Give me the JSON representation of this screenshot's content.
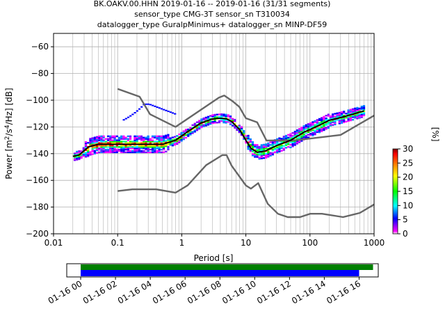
{
  "title": {
    "line1": "BK.OAKV.00.HHN   2019-01-16 -- 2019-01-16  (31/31 segments)",
    "line2": "sensor_type CMG-3T sensor_sn T310034",
    "line3": "datalogger_type GuralpMinimus+ datalogger_sn MINP-DF59"
  },
  "colorbar": {
    "label": "[%]",
    "ticks": [
      "0",
      "5",
      "10",
      "15",
      "20",
      "25",
      "30"
    ],
    "range": [
      0,
      30
    ]
  },
  "timeline": {
    "ticks": [
      "01-16 00",
      "01-16 02",
      "01-16 04",
      "01-16 06",
      "01-16 08",
      "01-16 10",
      "01-16 12",
      "01-16 14",
      "01-16 16"
    ],
    "range_hours": [
      -0.8,
      17.1
    ],
    "bars": [
      {
        "name": "data",
        "start": 0,
        "end": 16.8,
        "color": "#008000"
      },
      {
        "name": "used",
        "start": 0,
        "end": 16.0,
        "color": "#0000ff"
      }
    ]
  },
  "chart_data": {
    "type": "line",
    "xlabel": "Period [s]",
    "ylabel": "Power [m²/s⁴/Hz] [dB]",
    "xscale": "log",
    "xlim": [
      0.01,
      1000
    ],
    "ylim": [
      -200,
      -50
    ],
    "xticks": [
      "0.01",
      "0.1",
      "1",
      "10",
      "100",
      "1000"
    ],
    "yticks": [
      "−60",
      "−80",
      "−100",
      "−120",
      "−140",
      "−160",
      "−180",
      "−200"
    ],
    "grid": true,
    "series": [
      {
        "role": "new-high-noise-model",
        "color": "#666666",
        "x": [
          0.1,
          0.22,
          0.32,
          0.8,
          3.8,
          4.6,
          6.3,
          7.9,
          10,
          15,
          21,
          60,
          300,
          1000
        ],
        "y": [
          -91.5,
          -97.4,
          -110.5,
          -120,
          -98,
          -96.5,
          -101,
          -105,
          -113.5,
          -116.5,
          -130.2,
          -130,
          -126,
          -111.5
        ]
      },
      {
        "role": "new-low-noise-model",
        "color": "#666666",
        "x": [
          0.1,
          0.17,
          0.4,
          0.8,
          1.24,
          2.4,
          4.3,
          5,
          6,
          10,
          12,
          15.6,
          21.9,
          31.6,
          45,
          70,
          101,
          154,
          328,
          600,
          1000
        ],
        "y": [
          -168,
          -166.7,
          -166.7,
          -169.2,
          -163.7,
          -148.6,
          -141.1,
          -141.1,
          -149,
          -163.8,
          -166.2,
          -162.1,
          -177.5,
          -185,
          -187.5,
          -187.5,
          -185,
          -185,
          -187.5,
          -184.4,
          -178
        ]
      },
      {
        "role": "mode",
        "color": "#000000",
        "x": [
          0.02,
          0.025,
          0.035,
          0.05,
          0.08,
          0.12,
          0.2,
          0.3,
          0.5,
          0.8,
          1.2,
          2,
          3,
          4,
          5,
          6,
          8,
          10,
          12,
          15,
          20,
          30,
          50,
          80,
          100,
          150,
          200,
          300,
          500,
          700
        ],
        "y": [
          -142,
          -141,
          -135,
          -133,
          -133,
          -133,
          -133,
          -133,
          -133,
          -130,
          -124,
          -117,
          -114,
          -113.5,
          -114,
          -116,
          -122,
          -130,
          -136,
          -139,
          -138,
          -134,
          -130,
          -124,
          -122,
          -118,
          -115,
          -113,
          -110,
          -108
        ]
      }
    ],
    "histogram_color_scale": [
      "#ffffff",
      "#ff00ff",
      "#0000ff",
      "#00ffff",
      "#00ff00",
      "#ffff00",
      "#ff7f00",
      "#ff0000",
      "#7f0000"
    ]
  }
}
